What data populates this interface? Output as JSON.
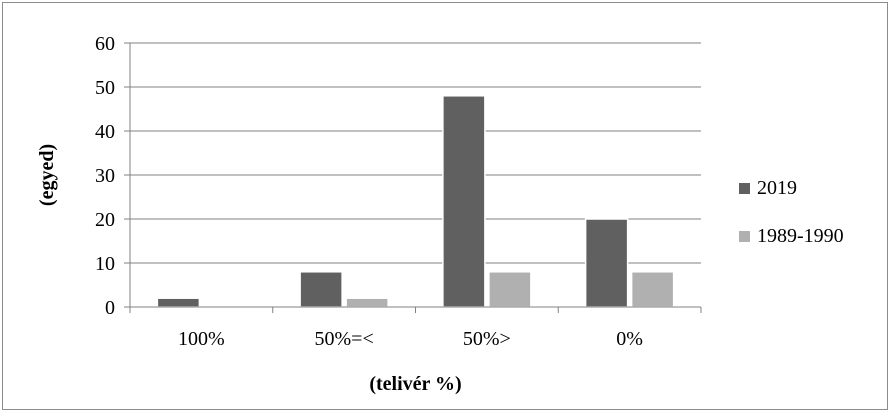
{
  "chart_data": {
    "type": "bar",
    "categories": [
      "100%",
      "50%=<",
      "50%>",
      "0%"
    ],
    "series": [
      {
        "name": "2019",
        "values": [
          2,
          8,
          48,
          20
        ],
        "color": "#606060"
      },
      {
        "name": "1989-1990",
        "values": [
          0,
          2,
          8,
          8
        ],
        "color": "#b0b0b0"
      }
    ],
    "xlabel": "(telivér %)",
    "ylabel": "(egyed)",
    "ylim": [
      0,
      60
    ],
    "yticks": [
      "0",
      "10",
      "20",
      "30",
      "40",
      "50",
      "60"
    ],
    "grid": true,
    "legend_position": "right"
  }
}
